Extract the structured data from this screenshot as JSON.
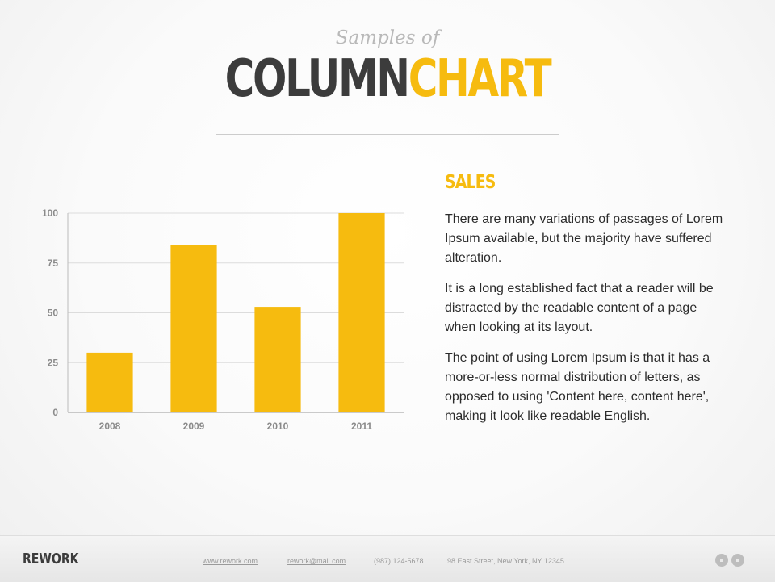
{
  "header": {
    "subtitle": "Samples of",
    "title_dark": "COLUMN",
    "title_accent": "CHART"
  },
  "colors": {
    "accent": "#f6bb0f",
    "dark": "#3c3c3c",
    "grid": "#dcdcdc"
  },
  "chart_data": {
    "type": "bar",
    "categories": [
      "2008",
      "2009",
      "2010",
      "2011"
    ],
    "values": [
      30,
      84,
      53,
      100
    ],
    "ylim": [
      0,
      100
    ],
    "yticks": [
      0,
      25,
      50,
      75,
      100
    ],
    "grid": true,
    "bar_color": "#f6bb0f"
  },
  "side": {
    "heading": "SALES",
    "paragraphs": [
      "There are many variations of passages of Lorem Ipsum available, but the majority have suffered alteration.",
      "It is a long established fact that a reader will be distracted by the readable content of a page when looking at its layout.",
      "The point of using Lorem Ipsum is that it has a more-or-less normal distribution of letters, as opposed to using 'Content here, content here', making it look like readable English."
    ]
  },
  "footer": {
    "brand": "REWORK",
    "website": "www.rework.com",
    "email": "rework@mail.com",
    "phone": "(987) 124-5678",
    "address": "98 East Street, New York, NY 12345",
    "logo_icon": "brand-logo-icon"
  }
}
